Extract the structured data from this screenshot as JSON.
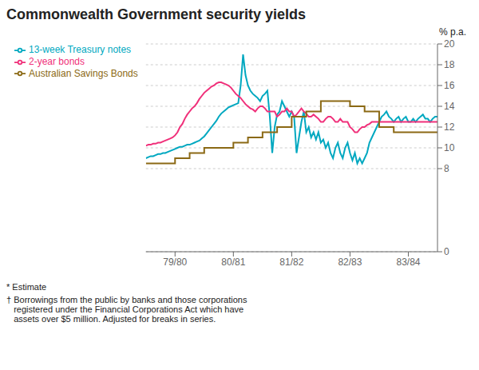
{
  "chart_data": {
    "type": "line",
    "title": "Commonwealth Government security yields",
    "y_label": "% p.a.",
    "annotations": [
      "* Estimate",
      "† Borrowings from the public by banks and those corporations\n   registered under the Financial Corporations Act which have\n   assets over $5 million. Adjusted for breaks in series."
    ],
    "xlim": [
      0,
      60
    ],
    "xticks": [
      {
        "value": 6,
        "label": "79/80"
      },
      {
        "value": 18,
        "label": "80/81"
      },
      {
        "value": 30,
        "label": "81/82"
      },
      {
        "value": 42,
        "label": "82/83"
      },
      {
        "value": 54,
        "label": "83/84"
      }
    ],
    "ylim": [
      0,
      20
    ],
    "yticks": [
      0,
      8,
      10,
      12,
      14,
      16,
      18,
      20
    ],
    "grid": true,
    "series": [
      {
        "name": "13-week Treasury notes",
        "color": "#00a8c0",
        "line_style": "solid",
        "x": [
          0,
          0.5,
          1,
          1.5,
          2,
          2.5,
          3,
          3.5,
          4,
          4.5,
          5,
          5.5,
          6,
          6.5,
          7,
          7.5,
          8,
          8.5,
          9,
          9.5,
          10,
          10.5,
          11,
          11.5,
          12,
          12.5,
          13,
          13.5,
          14,
          14.5,
          15,
          15.5,
          16,
          16.5,
          17,
          17.5,
          18,
          18.5,
          19,
          19.5,
          20,
          20.5,
          21,
          21.5,
          22,
          22.5,
          23,
          23.5,
          24,
          24.5,
          25,
          25.5,
          26,
          26.5,
          27,
          27.5,
          28,
          28.5,
          29,
          29.5,
          30,
          30.5,
          31,
          31.5,
          32,
          32.5,
          33,
          33.5,
          34,
          34.5,
          35,
          35.5,
          36,
          36.5,
          37,
          37.5,
          38,
          38.5,
          39,
          39.5,
          40,
          40.5,
          41,
          41.5,
          42,
          42.5,
          43,
          43.5,
          44,
          44.5,
          45,
          45.5,
          46,
          46.5,
          47,
          47.5,
          48,
          48.5,
          49,
          49.5,
          50,
          50.5,
          51,
          51.5,
          52,
          52.5,
          53,
          53.5,
          54,
          54.5,
          55,
          55.5,
          56,
          56.5,
          57,
          57.5,
          58,
          58.5,
          59,
          59.5,
          60
        ],
        "values": [
          9.0,
          9.1,
          9.2,
          9.2,
          9.3,
          9.4,
          9.4,
          9.5,
          9.5,
          9.6,
          9.7,
          9.8,
          9.9,
          10.0,
          10.1,
          10.1,
          10.2,
          10.3,
          10.3,
          10.4,
          10.5,
          10.6,
          10.7,
          10.9,
          11.1,
          11.4,
          11.7,
          12.0,
          12.3,
          12.6,
          13.0,
          13.3,
          13.5,
          13.7,
          13.9,
          14.0,
          14.1,
          14.2,
          14.3,
          16.0,
          19.0,
          17.0,
          16.0,
          15.5,
          15.2,
          15.0,
          14.8,
          14.5,
          15.0,
          15.2,
          15.5,
          13.0,
          9.5,
          12.0,
          13.2,
          13.5,
          14.5,
          14.0,
          13.5,
          13.0,
          13.5,
          13.0,
          9.5,
          11.0,
          12.5,
          13.5,
          11.5,
          12.0,
          11.0,
          11.5,
          10.8,
          11.5,
          10.5,
          10.8,
          10.0,
          10.5,
          9.5,
          9.0,
          10.0,
          10.5,
          9.5,
          9.0,
          10.0,
          10.5,
          9.5,
          8.8,
          9.5,
          8.5,
          9.0,
          8.5,
          9.0,
          9.5,
          10.5,
          11.0,
          11.5,
          12.0,
          12.5,
          13.0,
          13.2,
          13.5,
          13.0,
          12.8,
          12.5,
          12.8,
          13.0,
          12.5,
          12.8,
          13.0,
          12.5,
          12.5,
          12.8,
          12.5,
          12.8,
          13.0,
          13.2,
          12.8,
          12.8,
          12.5,
          12.8,
          13.0,
          13.0
        ]
      },
      {
        "name": "2-year bonds",
        "color": "#f0307a",
        "line_style": "solid",
        "x": [
          0,
          0.5,
          1,
          1.5,
          2,
          2.5,
          3,
          3.5,
          4,
          4.5,
          5,
          5.5,
          6,
          6.5,
          7,
          7.5,
          8,
          8.5,
          9,
          9.5,
          10,
          10.5,
          11,
          11.5,
          12,
          12.5,
          13,
          13.5,
          14,
          14.5,
          15,
          15.5,
          16,
          16.5,
          17,
          17.5,
          18,
          18.5,
          19,
          19.5,
          20,
          20.5,
          21,
          21.5,
          22,
          22.5,
          23,
          23.5,
          24,
          24.5,
          25,
          25.5,
          26,
          26.5,
          27,
          27.5,
          28,
          28.5,
          29,
          29.5,
          30,
          30.5,
          31,
          31.5,
          32,
          32.5,
          33,
          33.5,
          34,
          34.5,
          35,
          35.5,
          36,
          36.5,
          37,
          37.5,
          38,
          38.5,
          39,
          39.5,
          40,
          40.5,
          41,
          41.5,
          42,
          42.5,
          43,
          43.5,
          44,
          44.5,
          45,
          45.5,
          46,
          46.5,
          47,
          47.5,
          48,
          48.5,
          49,
          49.5,
          50,
          50.5,
          51,
          51.5,
          52,
          52.5,
          53,
          53.5,
          54,
          54.5,
          55,
          55.5,
          56,
          56.5,
          57,
          57.5,
          58,
          58.5,
          59,
          59.5,
          60
        ],
        "values": [
          10.2,
          10.3,
          10.3,
          10.4,
          10.4,
          10.5,
          10.5,
          10.6,
          10.7,
          10.8,
          10.9,
          11.0,
          11.2,
          11.5,
          12.0,
          12.3,
          12.8,
          13.2,
          13.5,
          13.8,
          14.0,
          14.3,
          14.7,
          15.0,
          15.3,
          15.5,
          15.7,
          15.9,
          16.0,
          16.2,
          16.3,
          16.3,
          16.2,
          16.1,
          16.0,
          15.8,
          15.5,
          15.2,
          15.0,
          14.8,
          14.5,
          14.2,
          14.0,
          13.8,
          13.7,
          13.5,
          13.8,
          14.0,
          14.0,
          13.8,
          13.5,
          13.5,
          13.5,
          13.5,
          13.0,
          13.2,
          13.5,
          13.5,
          13.8,
          13.5,
          13.5,
          13.0,
          13.2,
          13.5,
          13.8,
          13.5,
          13.3,
          13.0,
          13.0,
          13.2,
          13.0,
          12.8,
          12.5,
          12.5,
          12.8,
          13.0,
          13.0,
          12.8,
          12.5,
          12.5,
          12.8,
          12.5,
          12.5,
          12.5,
          12.0,
          11.8,
          11.5,
          11.5,
          11.8,
          12.0,
          12.0,
          12.2,
          12.3,
          12.5,
          12.5,
          12.5,
          12.5,
          12.5,
          12.5,
          12.5,
          12.5,
          12.5,
          12.5,
          12.5,
          12.5,
          12.5,
          12.5,
          12.5,
          12.5,
          12.5,
          12.5,
          12.5,
          12.5,
          12.5,
          12.5,
          12.5,
          12.5,
          12.5,
          12.5,
          12.5,
          12.5
        ]
      },
      {
        "name": "Australian Savings Bonds",
        "color": "#8b6914",
        "line_style": "step",
        "x": [
          0,
          3,
          6,
          9,
          12,
          15,
          18,
          21,
          24,
          27,
          30,
          33,
          36,
          39,
          42,
          45,
          48,
          51,
          54,
          57,
          60
        ],
        "values": [
          8.5,
          8.5,
          9.0,
          9.5,
          10.0,
          10.0,
          10.5,
          11.0,
          11.5,
          12.0,
          13.0,
          13.5,
          14.5,
          14.5,
          14.0,
          13.5,
          12.0,
          11.5,
          11.5,
          11.5,
          11.5
        ]
      }
    ]
  }
}
